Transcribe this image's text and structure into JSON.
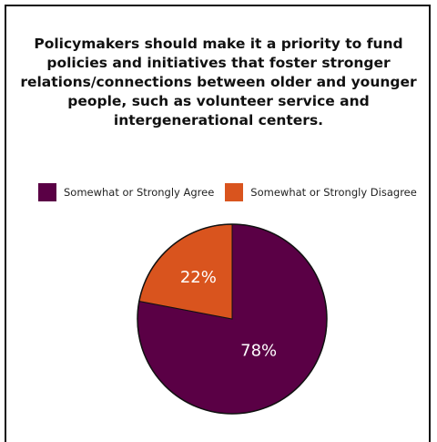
{
  "title": "Policymakers should make it a priority to fund policies and initiatives that foster stronger relations/connections between older and younger people, such as volunteer service and intergenerational centers.",
  "title_lines": [
    "Policymakers should make it a priority to fund",
    "policies and initiatives that foster stronger",
    "relations/connections between older and younger",
    "people, such as volunteer service and",
    "intergenerational centers."
  ],
  "colors": {
    "agree": "#5a0045",
    "disagree": "#d9541e"
  },
  "legend": [
    {
      "label": "Somewhat or Strongly Agree",
      "color": "#5a0045"
    },
    {
      "label": "Somewhat or Strongly Disagree",
      "color": "#d9541e"
    }
  ],
  "chart_data": {
    "type": "pie",
    "title": "Policymakers should make it a priority to fund policies and initiatives that foster stronger relations/connections between older and younger people, such as volunteer service and intergenerational centers.",
    "categories": [
      "Somewhat or Strongly Agree",
      "Somewhat or Strongly Disagree"
    ],
    "values": [
      78,
      22
    ],
    "data_labels": [
      "78%",
      "22%"
    ],
    "legend_position": "top"
  }
}
